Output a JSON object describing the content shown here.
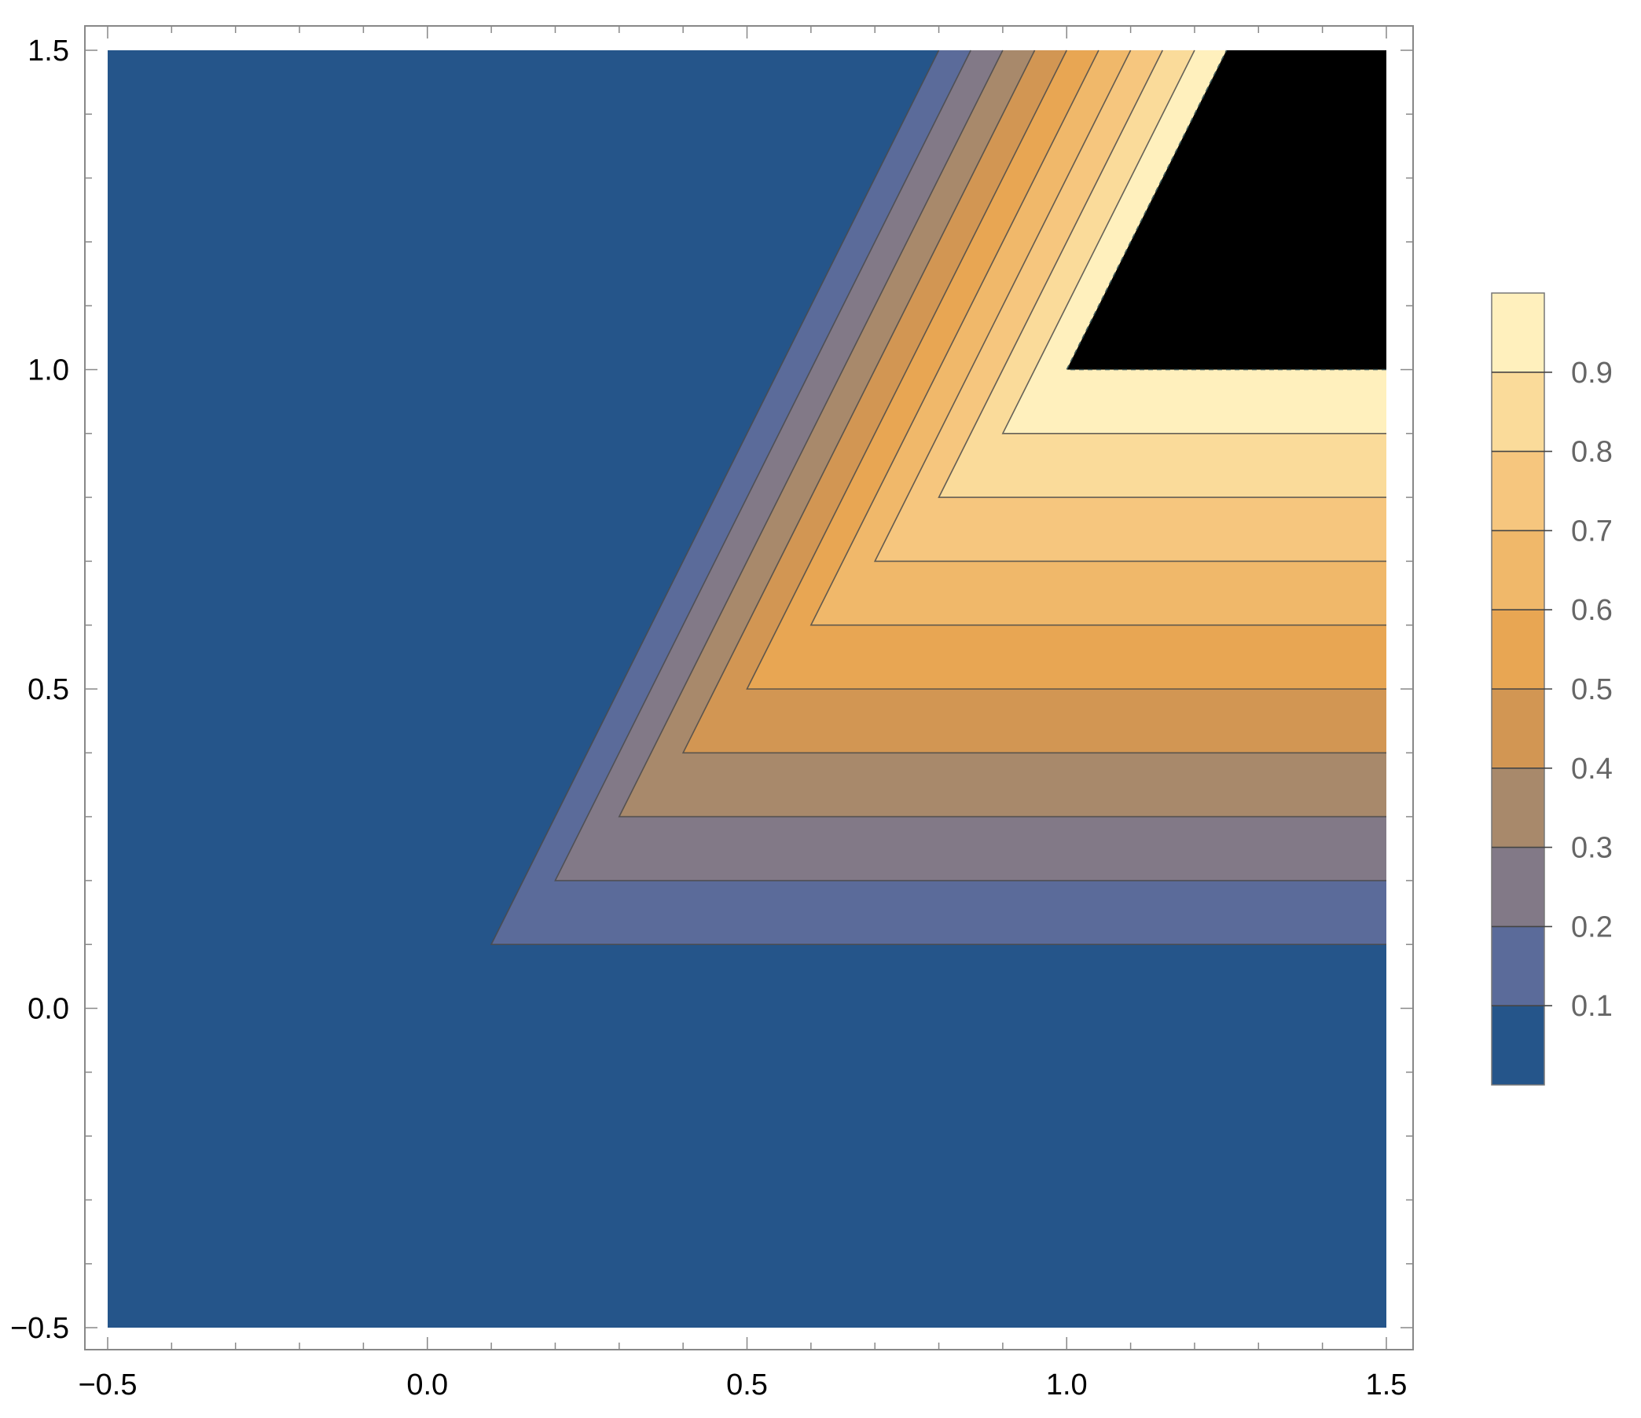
{
  "chart_data": {
    "type": "contour",
    "title": "",
    "xlabel": "",
    "ylabel": "",
    "xlim": [
      -0.5,
      1.5
    ],
    "ylim": [
      -0.5,
      1.5
    ],
    "x_ticks": [
      -0.5,
      0.0,
      0.5,
      1.0,
      1.5
    ],
    "y_ticks": [
      -0.5,
      0.0,
      0.5,
      1.0,
      1.5
    ],
    "x_tick_labels": [
      "−0.5",
      "0.0",
      "0.5",
      "1.0",
      "1.5"
    ],
    "y_tick_labels": [
      "−0.5",
      "0.0",
      "0.5",
      "1.0",
      "1.5"
    ],
    "contour_levels": [
      0.1,
      0.2,
      0.3,
      0.4,
      0.5,
      0.6,
      0.7,
      0.8,
      0.9
    ],
    "contour_shape": "level c occupies region y >= c and y >= 2x - c; value ~1 where y >= 1 and y >= 2x - 1",
    "band_colors": [
      "#25558a",
      "#5b6b9a",
      "#827987",
      "#a8896b",
      "#d29653",
      "#e8a653",
      "#f0b86a",
      "#f6c67e",
      "#fadb9a",
      "#fff0bd"
    ],
    "grid": false,
    "legend": {
      "placement": "right",
      "labels": [
        "0.1",
        "0.2",
        "0.3",
        "0.4",
        "0.5",
        "0.6",
        "0.7",
        "0.8",
        "0.9"
      ]
    }
  }
}
